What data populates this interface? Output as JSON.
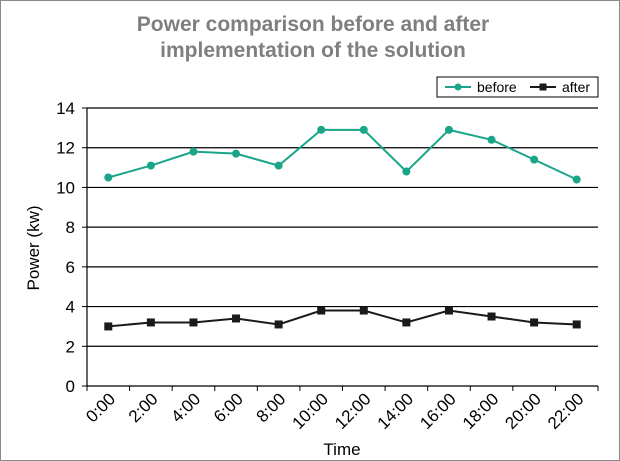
{
  "chart_data": {
    "type": "line",
    "title": [
      "Power comparison before and after",
      "implementation of the solution"
    ],
    "xlabel": "Time",
    "ylabel": "Power (kw)",
    "categories": [
      "0:00",
      "2:00",
      "4:00",
      "6:00",
      "8:00",
      "10:00",
      "12:00",
      "14:00",
      "16:00",
      "18:00",
      "20:00",
      "22:00"
    ],
    "ylim": [
      0,
      14
    ],
    "yticks": [
      0,
      2,
      4,
      6,
      8,
      10,
      12,
      14
    ],
    "grid": "horizontal",
    "legend_position": "top-right",
    "series": [
      {
        "name": "before",
        "color": "#1aa58a",
        "marker": "circle",
        "values": [
          10.5,
          11.1,
          11.8,
          11.7,
          11.1,
          12.9,
          12.9,
          10.8,
          12.9,
          12.4,
          11.4,
          10.4
        ]
      },
      {
        "name": "after",
        "color": "#1a1a1a",
        "marker": "square",
        "values": [
          3.0,
          3.2,
          3.2,
          3.4,
          3.1,
          3.8,
          3.8,
          3.2,
          3.8,
          3.5,
          3.2,
          3.1
        ]
      }
    ],
    "title_color": "#7f7f7f"
  }
}
